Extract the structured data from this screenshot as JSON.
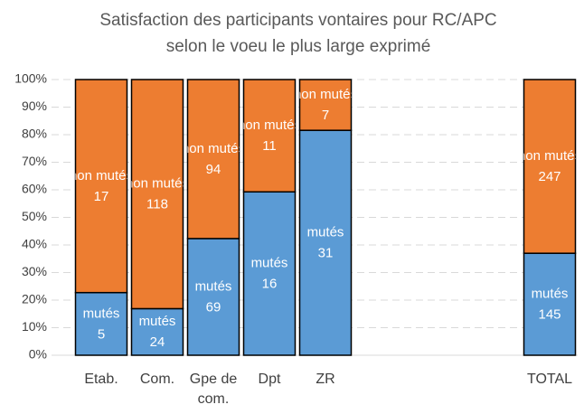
{
  "chart_data": {
    "type": "bar",
    "stacking": "percent",
    "title": "Satisfaction des participants vontaires pour RC/APC selon le voeu le plus large exprimé",
    "categories": [
      "Etab.",
      "Com.",
      "Gpe de com.",
      "Dpt",
      "ZR",
      null,
      null,
      null,
      "TOTAL"
    ],
    "series": [
      {
        "name": "mutés",
        "color": "#5b9bd5",
        "values": [
          5,
          24,
          69,
          16,
          31,
          null,
          null,
          null,
          145
        ]
      },
      {
        "name": "non mutés",
        "color": "#ed7d31",
        "values": [
          17,
          118,
          94,
          11,
          7,
          null,
          null,
          null,
          247
        ]
      }
    ],
    "ylim": [
      0,
      100
    ],
    "yticks": [
      {
        "value": 0,
        "label": "0%"
      },
      {
        "value": 10,
        "label": "10%"
      },
      {
        "value": 20,
        "label": "20%"
      },
      {
        "value": 30,
        "label": "30%"
      },
      {
        "value": 40,
        "label": "40%"
      },
      {
        "value": 50,
        "label": "50%"
      },
      {
        "value": 60,
        "label": "60%"
      },
      {
        "value": 70,
        "label": "70%"
      },
      {
        "value": 80,
        "label": "80%"
      },
      {
        "value": 90,
        "label": "90%"
      },
      {
        "value": 100,
        "label": "100%"
      }
    ],
    "grid": true
  }
}
